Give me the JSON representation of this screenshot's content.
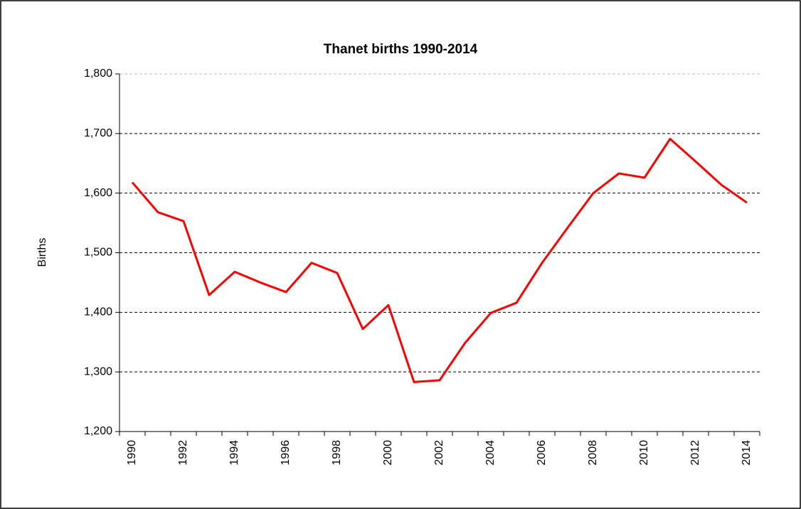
{
  "chart_data": {
    "type": "line",
    "title": "Thanet births 1990-2014",
    "y_label": "Births",
    "categories": [
      "1990",
      null,
      "1992",
      null,
      "1994",
      null,
      "1996",
      null,
      "1998",
      null,
      "2000",
      null,
      "2002",
      null,
      "2004",
      null,
      "2006",
      null,
      "2008",
      null,
      "2010",
      null,
      "2012",
      null,
      "2014"
    ],
    "series": [
      {
        "name": "Births",
        "color": "#ff0000",
        "values": [
          1618,
          1568,
          1553,
          1429,
          1468,
          1450,
          1434,
          1483,
          1466,
          1372,
          1412,
          1283,
          1286,
          1349,
          1399,
          1416,
          1483,
          1542,
          1600,
          1633,
          1626,
          1691,
          1653,
          1614,
          1584
        ]
      }
    ],
    "ylim": [
      1200,
      1800
    ],
    "yticks": [
      {
        "value": 1200,
        "label": "1,200"
      },
      {
        "value": 1300,
        "label": "1,300"
      },
      {
        "value": 1400,
        "label": "1,400"
      },
      {
        "value": 1500,
        "label": "1,500"
      },
      {
        "value": 1600,
        "label": "1,600"
      },
      {
        "value": 1700,
        "label": "1,700"
      },
      {
        "value": 1800,
        "label": "1,800"
      }
    ],
    "grid": true
  }
}
